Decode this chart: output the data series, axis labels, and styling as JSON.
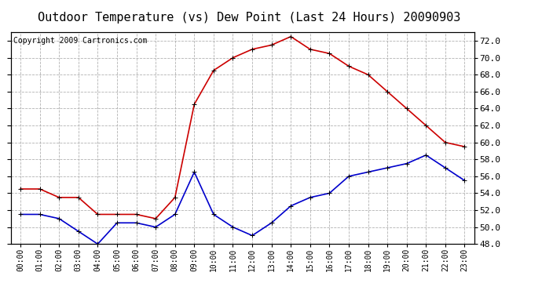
{
  "title": "Outdoor Temperature (vs) Dew Point (Last 24 Hours) 20090903",
  "copyright": "Copyright 2009 Cartronics.com",
  "hours": [
    "00:00",
    "01:00",
    "02:00",
    "03:00",
    "04:00",
    "05:00",
    "06:00",
    "07:00",
    "08:00",
    "09:00",
    "10:00",
    "11:00",
    "12:00",
    "13:00",
    "14:00",
    "15:00",
    "16:00",
    "17:00",
    "18:00",
    "19:00",
    "20:00",
    "21:00",
    "22:00",
    "23:00"
  ],
  "temp": [
    54.5,
    54.5,
    53.5,
    53.5,
    51.5,
    51.5,
    51.5,
    51.0,
    53.5,
    64.5,
    68.5,
    70.0,
    71.0,
    71.5,
    72.5,
    71.0,
    70.5,
    69.0,
    68.0,
    66.0,
    64.0,
    62.0,
    60.0,
    59.5
  ],
  "dewpoint": [
    51.5,
    51.5,
    51.0,
    49.5,
    48.0,
    50.5,
    50.5,
    50.0,
    51.5,
    56.5,
    51.5,
    50.0,
    49.0,
    50.5,
    52.5,
    53.5,
    54.0,
    56.0,
    56.5,
    57.0,
    57.5,
    58.5,
    57.0,
    55.5
  ],
  "temp_color": "#cc0000",
  "dew_color": "#0000cc",
  "background_color": "#ffffff",
  "grid_color": "#aaaaaa",
  "ylim": [
    48.0,
    73.0
  ],
  "yticks": [
    48.0,
    50.0,
    52.0,
    54.0,
    56.0,
    58.0,
    60.0,
    62.0,
    64.0,
    66.0,
    68.0,
    70.0,
    72.0
  ],
  "title_fontsize": 11,
  "copyright_fontsize": 7,
  "marker": "+",
  "markersize": 5,
  "linewidth": 1.2
}
